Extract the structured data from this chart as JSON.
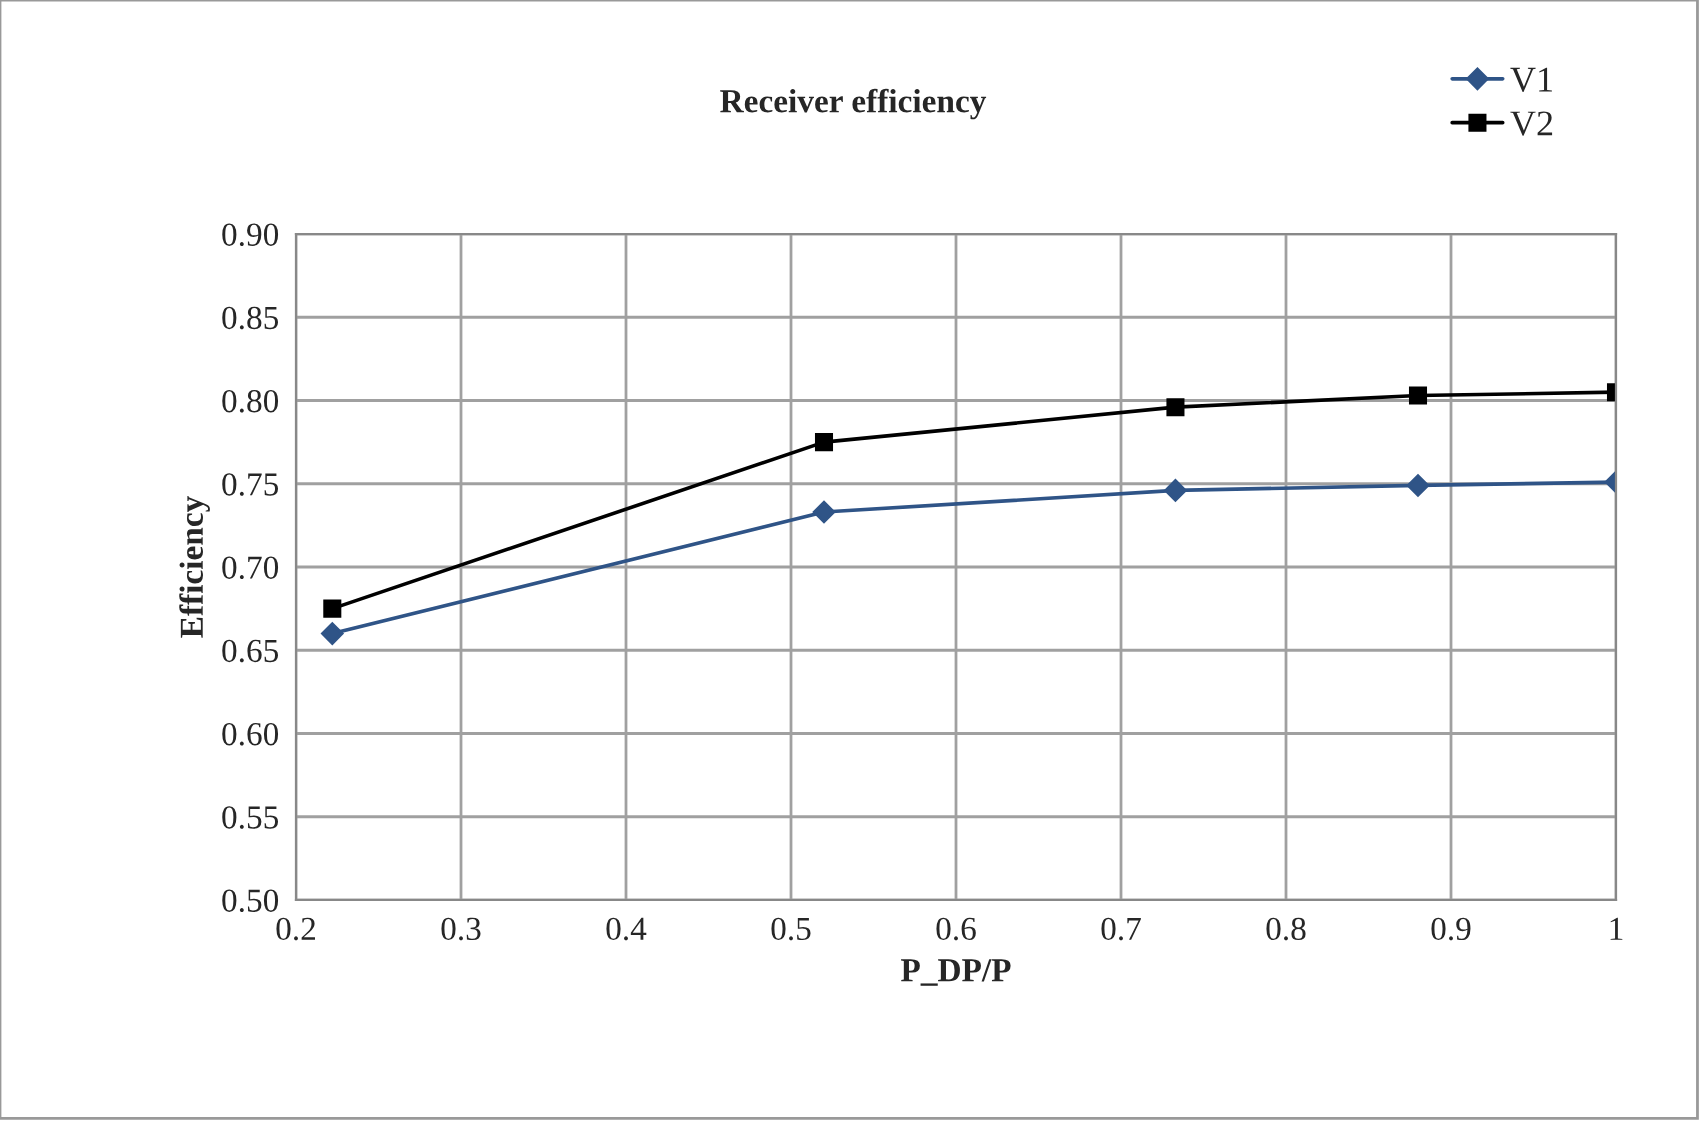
{
  "chart_data": {
    "type": "line",
    "title": "Receiver efficiency",
    "xlabel": "P_DP/P",
    "ylabel": "Efficiency",
    "x": [
      0.222,
      0.52,
      0.733,
      0.88,
      1.0
    ],
    "series": [
      {
        "name": "V1",
        "color": "#2f5487",
        "values": [
          0.66,
          0.733,
          0.746,
          0.749,
          0.751
        ],
        "marker": "diamond"
      },
      {
        "name": "V2",
        "color": "#000000",
        "values": [
          0.675,
          0.775,
          0.796,
          0.803,
          0.805
        ],
        "marker": "square"
      }
    ],
    "xlim": [
      0.2,
      1.0
    ],
    "xticks": [
      0.2,
      0.3,
      0.4,
      0.5,
      0.6,
      0.7,
      0.8,
      0.9,
      1
    ],
    "ylim": [
      0.5,
      0.9
    ],
    "yticks": [
      {
        "value": 0.5,
        "label": "0.50"
      },
      {
        "value": 0.55,
        "label": "0.55"
      },
      {
        "value": 0.6,
        "label": "0.60"
      },
      {
        "value": 0.65,
        "label": "0.65"
      },
      {
        "value": 0.7,
        "label": "0.70"
      },
      {
        "value": 0.75,
        "label": "0.75"
      },
      {
        "value": 0.8,
        "label": "0.80"
      },
      {
        "value": 0.85,
        "label": "0.85"
      },
      {
        "value": 0.9,
        "label": "0.90"
      }
    ],
    "grid": true,
    "legend": "top right",
    "line_style": "solid"
  }
}
